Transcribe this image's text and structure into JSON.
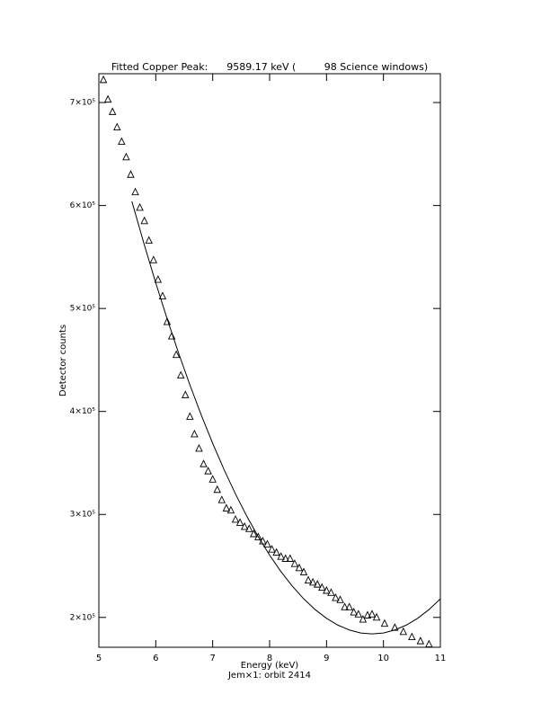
{
  "chart_data": {
    "type": "scatter",
    "title": "Fitted Copper Peak:      9589.17 keV (         98 Science windows)",
    "x_label": "Energy (keV)",
    "subtitle": "Jem×1: orbit 2414",
    "y_label": "Detector counts",
    "color": "#000000",
    "xlim": [
      5,
      11
    ],
    "xticks": [
      5,
      6,
      7,
      8,
      9,
      10,
      11
    ],
    "ylim": [
      171000,
      728000
    ],
    "yticks": [
      {
        "value": 200000,
        "label": "2×10⁵"
      },
      {
        "value": 300000,
        "label": "3×10⁵"
      },
      {
        "value": 400000,
        "label": "4×10⁵"
      },
      {
        "value": 500000,
        "label": "5×10⁵"
      },
      {
        "value": 600000,
        "label": "6×10⁵"
      },
      {
        "value": 700000,
        "label": "7×10⁵"
      }
    ],
    "series": [
      {
        "type": "scatter",
        "marker": "triangle",
        "x": [
          5.08,
          5.16,
          5.24,
          5.32,
          5.4,
          5.48,
          5.56,
          5.64,
          5.72,
          5.8,
          5.88,
          5.96,
          6.04,
          6.12,
          6.2,
          6.28,
          6.36,
          6.44,
          6.52,
          6.6,
          6.68,
          6.76,
          6.84,
          6.92,
          7.0,
          7.08,
          7.16,
          7.24,
          7.32,
          7.4,
          7.48,
          7.56,
          7.64,
          7.72,
          7.8,
          7.88,
          7.96,
          8.04,
          8.12,
          8.2,
          8.28,
          8.36,
          8.44,
          8.52,
          8.6,
          8.68,
          8.76,
          8.84,
          8.92,
          9.0,
          9.08,
          9.16,
          9.24,
          9.32,
          9.4,
          9.48,
          9.56,
          9.64,
          9.72,
          9.8,
          9.88,
          10.02,
          10.2,
          10.35,
          10.5,
          10.65,
          10.8
        ],
        "values": [
          722000,
          703000,
          691000,
          676000,
          662000,
          647000,
          630000,
          613000,
          598000,
          585000,
          566000,
          547000,
          528000,
          512000,
          487000,
          473000,
          455000,
          435000,
          416000,
          395000,
          378000,
          364000,
          349000,
          342000,
          334000,
          324000,
          314000,
          306000,
          304000,
          295000,
          292000,
          288000,
          286000,
          281000,
          278000,
          274000,
          271000,
          266000,
          263000,
          259000,
          257000,
          257000,
          252000,
          248000,
          244000,
          236000,
          234000,
          232000,
          229000,
          226000,
          224000,
          219000,
          217000,
          210000,
          210000,
          205000,
          203000,
          198000,
          202000,
          203000,
          200000,
          194000,
          190000,
          186000,
          181000,
          177000,
          174000
        ]
      },
      {
        "type": "line",
        "x": [
          5.58,
          5.8,
          6.0,
          6.2,
          6.4,
          6.6,
          6.8,
          7.0,
          7.2,
          7.4,
          7.6,
          7.8,
          8.0,
          8.2,
          8.4,
          8.6,
          8.8,
          9.0,
          9.2,
          9.4,
          9.6,
          9.8,
          10.0,
          10.2,
          10.4,
          10.6,
          10.8,
          11.0
        ],
        "values": [
          604000,
          561600,
          524800,
          489900,
          456800,
          425700,
          396400,
          369000,
          343500,
          319900,
          298200,
          278400,
          260500,
          244400,
          230300,
          218000,
          207600,
          199100,
          192500,
          187800,
          184900,
          184000,
          184900,
          187800,
          192500,
          199100,
          207600,
          218000
        ]
      }
    ]
  }
}
